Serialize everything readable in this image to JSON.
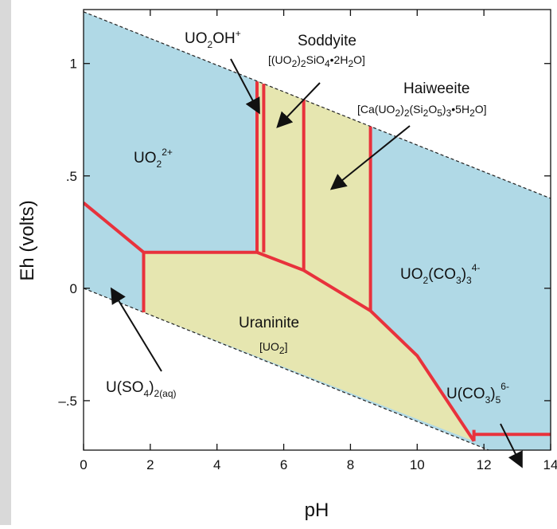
{
  "chart_data": {
    "type": "phase-diagram",
    "title": "",
    "xlabel": "pH",
    "ylabel": "Eh (volts)",
    "xlim": [
      0,
      14
    ],
    "ylim": [
      -0.72,
      1.24
    ],
    "xticks": [
      0,
      2,
      4,
      6,
      8,
      10,
      12,
      14
    ],
    "yticks": [
      {
        "value": 1.0,
        "label": "1"
      },
      {
        "value": 0.5,
        "label": ".5"
      },
      {
        "value": 0.0,
        "label": "0"
      },
      {
        "value": -0.5,
        "label": "–.5"
      }
    ],
    "water_stability_lines": [
      {
        "name": "O2/H2O",
        "points": [
          [
            0,
            1.23
          ],
          [
            14,
            0.4
          ]
        ]
      },
      {
        "name": "H2O/H2",
        "points": [
          [
            0,
            0.0
          ],
          [
            14,
            -0.83
          ]
        ]
      }
    ],
    "field_colors": {
      "aqueous": "#b0d9e6",
      "solid": "#e6e6b0",
      "boundary": "#e8323c"
    },
    "solid_fields": [
      {
        "name": "Uraninite",
        "points": [
          [
            1.8,
            0.16
          ],
          [
            5.2,
            0.16
          ],
          [
            6.6,
            0.08
          ],
          [
            8.6,
            -0.1
          ],
          [
            10.0,
            -0.3
          ],
          [
            11.7,
            -0.68
          ],
          [
            1.8,
            -0.107
          ]
        ]
      },
      {
        "name": "Soddyite",
        "points": [
          [
            5.2,
            0.92
          ],
          [
            6.6,
            0.84
          ],
          [
            6.6,
            0.08
          ],
          [
            5.2,
            0.16
          ]
        ]
      },
      {
        "name": "Haiweeite",
        "points": [
          [
            6.6,
            0.84
          ],
          [
            8.6,
            0.72
          ],
          [
            8.6,
            -0.1
          ],
          [
            6.6,
            0.08
          ]
        ]
      }
    ],
    "boundaries": [
      {
        "points": [
          [
            0,
            0.38
          ],
          [
            1.8,
            0.16
          ],
          [
            5.2,
            0.16
          ],
          [
            6.6,
            0.08
          ],
          [
            8.6,
            -0.1
          ],
          [
            10.0,
            -0.3
          ],
          [
            11.7,
            -0.68
          ]
        ]
      },
      {
        "points": [
          [
            1.8,
            0.16
          ],
          [
            1.8,
            -0.107
          ]
        ]
      },
      {
        "points": [
          [
            5.2,
            0.16
          ],
          [
            5.2,
            0.92
          ]
        ]
      },
      {
        "points": [
          [
            5.4,
            0.16
          ],
          [
            5.4,
            0.91
          ]
        ]
      },
      {
        "points": [
          [
            6.6,
            0.08
          ],
          [
            6.6,
            0.84
          ]
        ]
      },
      {
        "points": [
          [
            8.6,
            -0.1
          ],
          [
            8.6,
            0.72
          ]
        ]
      },
      {
        "points": [
          [
            11.7,
            -0.68
          ],
          [
            11.7,
            -0.63
          ]
        ]
      },
      {
        "points": [
          [
            11.7,
            -0.65
          ],
          [
            14.0,
            -0.65
          ]
        ]
      }
    ],
    "labels": {
      "uo2_2plus": {
        "main": "UO",
        "sub": "2",
        "sup": "2+"
      },
      "uo2oh": {
        "a": "UO",
        "sub": "2",
        "b": "OH",
        "sup": "+"
      },
      "soddyite": {
        "name": "Soddyite",
        "f1": "[(UO",
        "s1": "2",
        "f2": ")",
        "s2": "2",
        "f3": "SiO",
        "s3": "4",
        "f4": "•2H",
        "s4": "2",
        "f5": "O]"
      },
      "haiweeite": {
        "name": "Haiweeite",
        "f1": "[Ca(UO",
        "s1": "2",
        "f2": ")",
        "s2": "2",
        "f3": "(Si",
        "s3": "2",
        "f4": "O",
        "s4": "5",
        "f5": ")",
        "s5": "3",
        "f6": "•5H",
        "s6": "2",
        "f7": "O]"
      },
      "uo2co3": {
        "a": "UO",
        "s1": "2",
        "b": "(CO",
        "s2": "3",
        "c": ")",
        "s3": "3",
        "sup": "4-"
      },
      "uraninite": {
        "name": "Uraninite",
        "formula": "[UO",
        "sub": "2",
        "end": "]"
      },
      "uso4": {
        "a": "U(SO",
        "s1": "4",
        "b": ")",
        "s2": "2(aq)"
      },
      "uco3": {
        "a": "U(CO",
        "s1": "3",
        "b": ")",
        "s2": "5",
        "sup": "6-"
      }
    }
  }
}
